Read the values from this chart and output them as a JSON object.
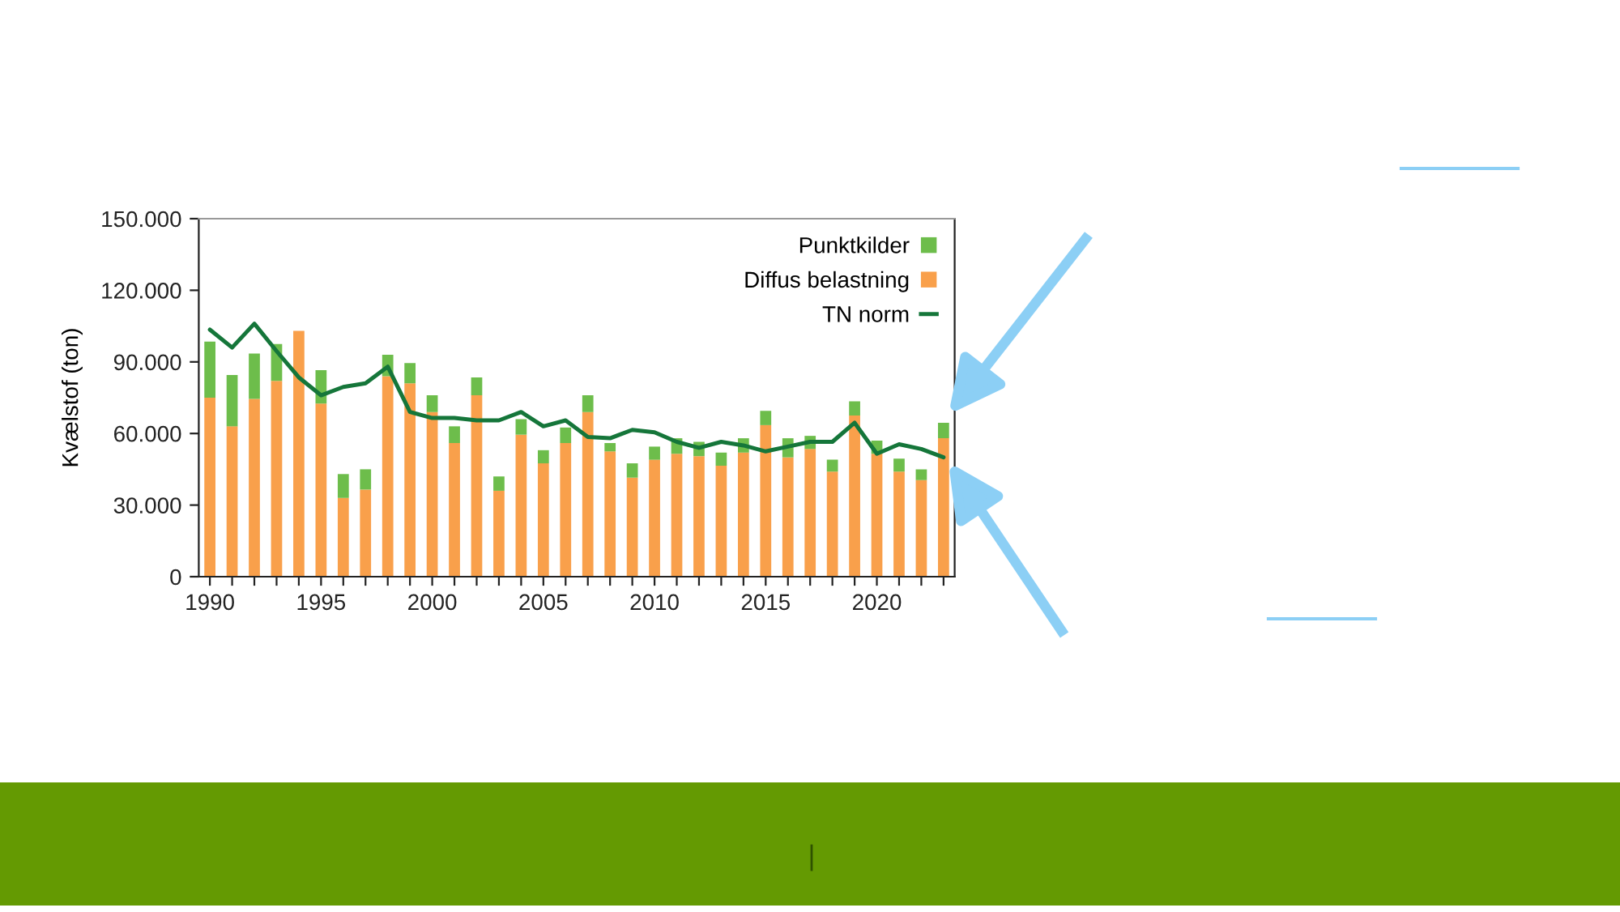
{
  "chart_data": {
    "type": "bar",
    "stacked": true,
    "ylabel": "Kvælstof (ton)",
    "x": [
      1990,
      1991,
      1992,
      1993,
      1994,
      1995,
      1996,
      1997,
      1998,
      1999,
      2000,
      2001,
      2002,
      2003,
      2004,
      2005,
      2006,
      2007,
      2008,
      2009,
      2010,
      2011,
      2012,
      2013,
      2014,
      2015,
      2016,
      2017,
      2018,
      2019,
      2020,
      2021,
      2022,
      2023
    ],
    "series": [
      {
        "name": "Diffus belastning",
        "color": "#f9a04b",
        "values": [
          75000,
          63000,
          74500,
          82000,
          103000,
          72500,
          33000,
          36500,
          84000,
          81000,
          69000,
          56000,
          76000,
          36000,
          59500,
          47500,
          56000,
          69000,
          52500,
          41500,
          49000,
          51500,
          50500,
          46500,
          52000,
          63500,
          50000,
          53500,
          44000,
          67500,
          51500,
          44000,
          40500,
          58000
        ]
      },
      {
        "name": "Punktkilder",
        "color": "#6dbd4b",
        "values": [
          23500,
          21500,
          19000,
          15500,
          null,
          14000,
          10000,
          8500,
          9000,
          8500,
          7000,
          7000,
          7500,
          6000,
          6500,
          5500,
          6500,
          7000,
          3500,
          6000,
          5500,
          6500,
          6000,
          5500,
          6000,
          6000,
          8000,
          5500,
          5000,
          6000,
          5500,
          5500,
          4500,
          6500
        ]
      },
      {
        "name": "TN norm",
        "type": "line",
        "color": "#15763a",
        "values": [
          103500,
          96000,
          106000,
          94500,
          83500,
          76000,
          79500,
          81000,
          88000,
          69000,
          66500,
          66500,
          65500,
          65500,
          69000,
          63000,
          65500,
          58500,
          58000,
          61500,
          60500,
          56500,
          54000,
          56500,
          55000,
          52500,
          54500,
          56500,
          56500,
          64500,
          51500,
          55500,
          53500,
          50000
        ]
      }
    ],
    "xlim": [
      1989.5,
      2023.5
    ],
    "xticks": [
      1990,
      {
        "value": 1991,
        "label": null
      },
      {
        "value": 1992,
        "label": null
      },
      {
        "value": 1993,
        "label": null
      },
      {
        "value": 1994,
        "label": null
      },
      1995,
      {
        "value": 1996,
        "label": null
      },
      {
        "value": 1997,
        "label": null
      },
      {
        "value": 1998,
        "label": null
      },
      {
        "value": 1999,
        "label": null
      },
      2000,
      {
        "value": 2001,
        "label": null
      },
      {
        "value": 2002,
        "label": null
      },
      {
        "value": 2003,
        "label": null
      },
      {
        "value": 2004,
        "label": null
      },
      2005,
      {
        "value": 2006,
        "label": null
      },
      {
        "value": 2007,
        "label": null
      },
      {
        "value": 2008,
        "label": null
      },
      {
        "value": 2009,
        "label": null
      },
      2010,
      {
        "value": 2011,
        "label": null
      },
      {
        "value": 2012,
        "label": null
      },
      {
        "value": 2013,
        "label": null
      },
      {
        "value": 2014,
        "label": null
      },
      2015,
      {
        "value": 2016,
        "label": null
      },
      {
        "value": 2017,
        "label": null
      },
      {
        "value": 2018,
        "label": null
      },
      {
        "value": 2019,
        "label": null
      },
      2020,
      {
        "value": 2021,
        "label": null
      },
      {
        "value": 2022,
        "label": null
      },
      {
        "value": 2023,
        "label": null
      }
    ],
    "ylim": [
      0,
      150000
    ],
    "yticks": [
      0,
      {
        "value": 30000,
        "label": "30.000"
      },
      {
        "value": 60000,
        "label": "60.000"
      },
      {
        "value": 90000,
        "label": "90.000"
      },
      {
        "value": 120000,
        "label": "120.000"
      },
      {
        "value": 150000,
        "label": "150.000"
      }
    ],
    "legend": "top right",
    "grid": false,
    "line_style": "solid"
  }
}
